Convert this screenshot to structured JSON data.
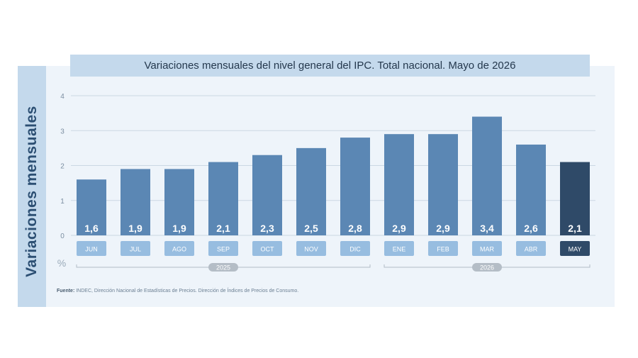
{
  "chart_data": {
    "type": "bar",
    "title": "Variaciones mensuales del nivel general del IPC. Total nacional. Mayo de 2026",
    "ylabel": "Variaciones mensuales",
    "yunit": "%",
    "ylim": [
      0,
      4
    ],
    "yticks": [
      "0",
      "1",
      "2",
      "3",
      "4"
    ],
    "grid": true,
    "categories": [
      "JUN",
      "JUL",
      "AGO",
      "SEP",
      "OCT",
      "NOV",
      "DIC",
      "ENE",
      "FEB",
      "MAR",
      "ABR",
      "MAY"
    ],
    "values": [
      1.6,
      1.9,
      1.9,
      2.1,
      2.3,
      2.5,
      2.8,
      2.9,
      2.9,
      3.4,
      2.6,
      2.1
    ],
    "value_labels": [
      "1,6",
      "1,9",
      "1,9",
      "2,1",
      "2,3",
      "2,5",
      "2,8",
      "2,9",
      "2,9",
      "3,4",
      "2,6",
      "2,1"
    ],
    "year_groups": [
      {
        "label": "2025",
        "first": 0,
        "last": 6
      },
      {
        "label": "2026",
        "first": 7,
        "last": 11
      }
    ],
    "highlight_index": 11,
    "colors": {
      "bar": "#5b87b4",
      "highlight": "#2f4a68",
      "grid": "#cbd7e3"
    }
  },
  "source": {
    "label": "Fuente:",
    "text": "INDEC, Dirección Nacional de Estadísticas de Precios. Dirección de Índices de Precios de Consumo."
  }
}
